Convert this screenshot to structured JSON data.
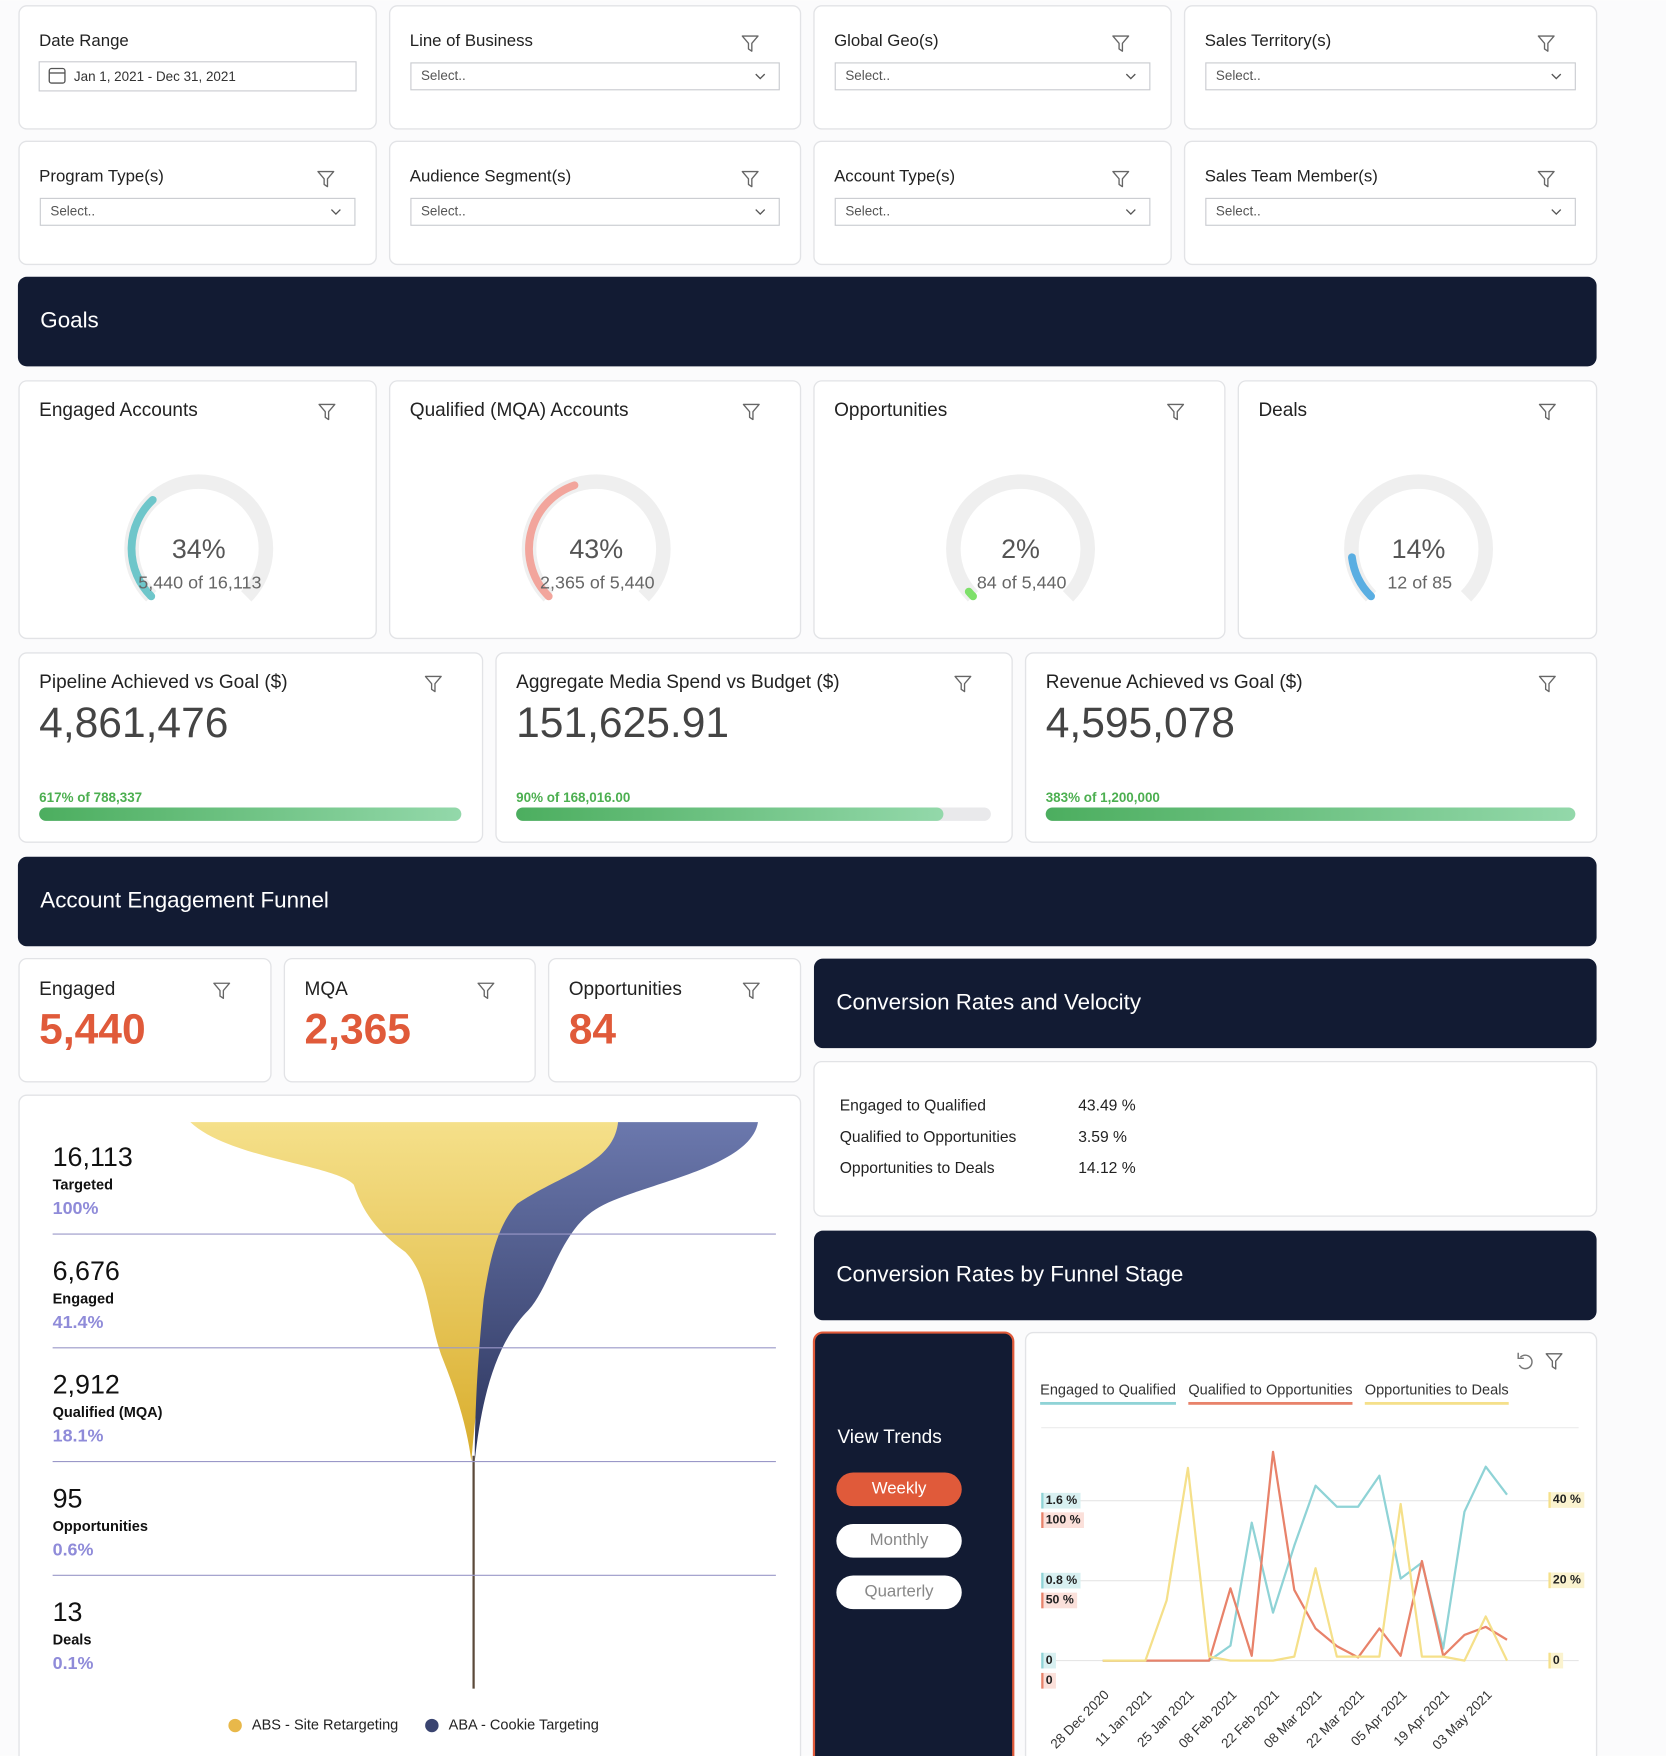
{
  "filters": [
    {
      "label": "Date Range",
      "value": "Jan 1, 2021 - Dec 31, 2021"
    },
    {
      "label": "Line of Business",
      "placeholder": "Select.."
    },
    {
      "label": "Global Geo(s)",
      "placeholder": "Select.."
    },
    {
      "label": "Sales Territory(s)",
      "placeholder": "Select.."
    },
    {
      "label": "Program Type(s)",
      "placeholder": "Select.."
    },
    {
      "label": "Audience Segment(s)",
      "placeholder": "Select.."
    },
    {
      "label": "Account Type(s)",
      "placeholder": "Select.."
    },
    {
      "label": "Sales Team Member(s)",
      "placeholder": "Select.."
    }
  ],
  "goals": {
    "title": "Goals",
    "gauges": [
      {
        "title": "Engaged Accounts",
        "percent": 34,
        "percent_label": "34%",
        "detail": "5,440  of 16,113",
        "color": "#6ec6ca"
      },
      {
        "title": "Qualified (MQA) Accounts",
        "percent": 43,
        "percent_label": "43%",
        "detail": "2,365  of 5,440",
        "color": "#f2a59c"
      },
      {
        "title": "Opportunities",
        "percent": 2,
        "percent_label": "2%",
        "detail": "84  of 5,440",
        "color": "#7ee06a"
      },
      {
        "title": "Deals",
        "percent": 14,
        "percent_label": "14%",
        "detail": "12  of 85",
        "color": "#5aaee2"
      }
    ]
  },
  "kpis": [
    {
      "title": "Pipeline Achieved vs Goal ($)",
      "value": "4,861,476",
      "progress": 617,
      "progress_label": "617% of 788,337"
    },
    {
      "title": "Aggregate Media Spend vs Budget ($)",
      "value": "151,625.91",
      "progress": 90,
      "progress_label": "90% of 168,016.00"
    },
    {
      "title": "Revenue Achieved vs Goal ($)",
      "value": "4,595,078",
      "progress": 383,
      "progress_label": "383% of 1,200,000"
    }
  ],
  "funnel_section": {
    "title": "Account Engagement Funnel",
    "counts": [
      {
        "label": "Engaged",
        "value": "5,440"
      },
      {
        "label": "MQA",
        "value": "2,365"
      },
      {
        "label": "Opportunities",
        "value": "84"
      }
    ]
  },
  "funnel": {
    "stages": [
      {
        "value": "16,113",
        "name": "Targeted",
        "share": "100%"
      },
      {
        "value": "6,676",
        "name": "Engaged",
        "share": "41.4%"
      },
      {
        "value": "2,912",
        "name": "Qualified (MQA)",
        "share": "18.1%"
      },
      {
        "value": "95",
        "name": "Opportunities",
        "share": "0.6%"
      },
      {
        "value": "13",
        "name": "Deals",
        "share": "0.1%"
      }
    ],
    "legend": [
      {
        "name": "ABS - Site Retargeting",
        "color": "#e8b84a"
      },
      {
        "name": "ABA - Cookie Targeting",
        "color": "#3a4470"
      }
    ]
  },
  "conversion": {
    "title": "Conversion Rates and Velocity",
    "rows": [
      [
        "Engaged to Qualified",
        "43.49 %"
      ],
      [
        "Qualified to Opportunities",
        "3.59 %"
      ],
      [
        "Opportunities to Deals",
        "14.12 %"
      ]
    ]
  },
  "stage_section": {
    "title": "Conversion Rates by Funnel Stage",
    "view_trends": "View Trends",
    "buttons": [
      "Weekly",
      "Monthly",
      "Quarterly"
    ]
  },
  "chart_data": {
    "type": "line",
    "categories": [
      "28 Dec 2020",
      null,
      "11 Jan 2021",
      null,
      "25 Jan 2021",
      null,
      "08 Feb 2021",
      null,
      "22 Feb 2021",
      null,
      "08 Mar 2021",
      null,
      "22 Mar 2021",
      null,
      "05 Apr 2021",
      null,
      "19 Apr 2021",
      null,
      "03 May 2021",
      null
    ],
    "series": [
      {
        "name": "Engaged to Qualified",
        "color": "#8fd3d6",
        "axis": "y",
        "values": [
          0,
          0,
          0,
          0,
          0,
          0,
          0.15,
          1.38,
          0.48,
          1.15,
          1.75,
          1.54,
          1.54,
          1.85,
          0.82,
          0.98,
          0.12,
          1.49,
          1.94,
          1.66
        ]
      },
      {
        "name": "Qualified to Opportunities",
        "color": "#e8826a",
        "axis": "y2",
        "values": [
          0,
          0,
          0,
          0,
          0,
          0,
          45,
          3,
          130,
          44,
          20,
          9,
          2,
          20,
          3,
          62,
          3,
          16,
          21,
          13
        ]
      },
      {
        "name": "Opportunities to Deals",
        "color": "#f5e08a",
        "axis": "y3",
        "values": [
          0,
          0,
          0,
          15,
          48,
          1,
          0,
          0,
          0,
          1,
          23,
          1,
          1,
          1,
          39,
          1,
          1,
          0,
          11,
          0
        ]
      }
    ],
    "ylim": [
      0,
      2.33
    ],
    "yticks": [
      0,
      {
        "value": 0.8,
        "label": "0.8 %"
      },
      {
        "value": 1.6,
        "label": "1.6 %"
      }
    ],
    "y2lim": [
      0,
      145
    ],
    "y2ticks": [
      0,
      {
        "value": 50,
        "label": "50 %"
      },
      {
        "value": 100,
        "label": "100 %"
      }
    ],
    "y3lim": [
      0,
      58
    ],
    "y3ticks": [
      0,
      {
        "value": 20,
        "label": "20 %"
      },
      {
        "value": 40,
        "label": "40 %"
      }
    ],
    "grid": true
  }
}
